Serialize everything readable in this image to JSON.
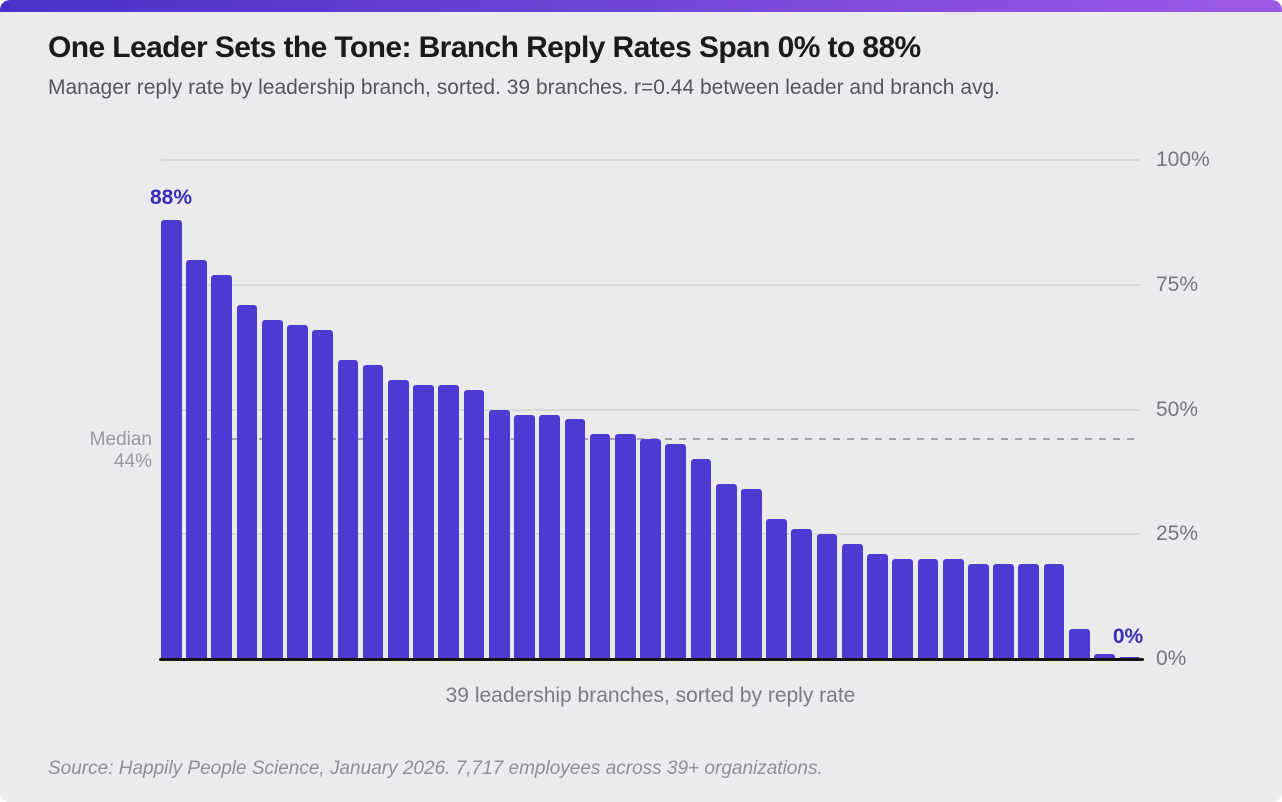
{
  "header": {
    "title": "One Leader Sets the Tone: Branch Reply Rates Span 0% to 88%",
    "subtitle": "Manager reply rate by leadership branch, sorted. 39 branches. r=0.44 between leader and branch avg."
  },
  "chart_data": {
    "type": "bar",
    "title": "One Leader Sets the Tone: Branch Reply Rates Span 0% to 88%",
    "subtitle": "Manager reply rate by leadership branch, sorted. 39 branches. r=0.44 between leader and branch avg.",
    "values": [
      88,
      80,
      77,
      71,
      68,
      67,
      66,
      60,
      59,
      56,
      55,
      55,
      54,
      50,
      49,
      49,
      48,
      45,
      45,
      44,
      43,
      40,
      35,
      34,
      28,
      26,
      25,
      23,
      21,
      20,
      20,
      20,
      19,
      19,
      19,
      19,
      6,
      1,
      0
    ],
    "xlabel": "39 leadership branches, sorted by reply rate",
    "ylabel": "",
    "ylim": [
      0,
      100
    ],
    "grid": true,
    "legend": false,
    "yticks": [
      {
        "label": "100%",
        "value": 100
      },
      {
        "label": "75%",
        "value": 75
      },
      {
        "label": "50%",
        "value": 50
      },
      {
        "label": "25%",
        "value": 25
      },
      {
        "label": "0%",
        "value": 0
      }
    ],
    "median": {
      "value": 44,
      "label_lines": [
        "Median",
        "44%"
      ]
    },
    "first_bar_label": "88%",
    "last_bar_label": "0%"
  },
  "footer": {
    "source": "Source: Happily People Science, January 2026. 7,717 employees across 39+ organizations."
  },
  "colors": {
    "background": "#ebebed",
    "bar": "#4e3bd4",
    "bar_value_label": "#3a2db8",
    "accent_gradient_start": "#4831c9",
    "accent_gradient_end": "#9d59e5"
  }
}
